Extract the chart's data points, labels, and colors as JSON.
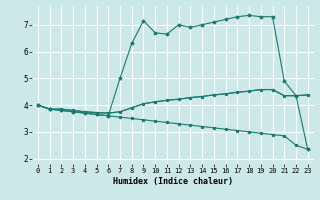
{
  "xlabel": "Humidex (Indice chaleur)",
  "bg_color": "#cce8e8",
  "line_color": "#1a7a6e",
  "grid_color": "#ffffff",
  "xlim": [
    -0.5,
    23.5
  ],
  "ylim": [
    1.8,
    7.7
  ],
  "yticks": [
    2,
    3,
    4,
    5,
    6,
    7
  ],
  "xticks": [
    0,
    1,
    2,
    3,
    4,
    5,
    6,
    7,
    8,
    9,
    10,
    11,
    12,
    13,
    14,
    15,
    16,
    17,
    18,
    19,
    20,
    21,
    22,
    23
  ],
  "line1_x": [
    0,
    1,
    2,
    3,
    4,
    5,
    6,
    7,
    8,
    9,
    10,
    11,
    12,
    13,
    14,
    15,
    16,
    17,
    18,
    19,
    20,
    21,
    22,
    23
  ],
  "line1_y": [
    4.0,
    3.85,
    3.85,
    3.8,
    3.75,
    3.72,
    3.7,
    3.75,
    3.9,
    4.05,
    4.12,
    4.18,
    4.22,
    4.28,
    4.32,
    4.38,
    4.42,
    4.48,
    4.52,
    4.58,
    4.58,
    4.35,
    4.35,
    4.38
  ],
  "line2_x": [
    0,
    1,
    2,
    3,
    4,
    5,
    6,
    7,
    8,
    9,
    10,
    11,
    12,
    13,
    14,
    15,
    16,
    17,
    18,
    19,
    20,
    21,
    22,
    23
  ],
  "line2_y": [
    4.0,
    3.85,
    3.85,
    3.8,
    3.75,
    3.72,
    3.7,
    3.75,
    3.9,
    4.05,
    4.12,
    4.18,
    4.22,
    4.28,
    4.32,
    4.38,
    4.42,
    4.48,
    4.52,
    4.58,
    4.58,
    4.35,
    4.35,
    4.38
  ],
  "line3_x": [
    0,
    1,
    2,
    3,
    4,
    5,
    6,
    7,
    8,
    9,
    10,
    11,
    12,
    13,
    14,
    15,
    16,
    17,
    18,
    19,
    20,
    21,
    22,
    23
  ],
  "line3_y": [
    4.0,
    3.85,
    3.8,
    3.75,
    3.7,
    3.65,
    3.6,
    5.0,
    6.3,
    7.15,
    6.7,
    6.65,
    7.0,
    6.9,
    7.0,
    7.1,
    7.2,
    7.3,
    7.35,
    7.3,
    7.3,
    4.9,
    4.35,
    2.35
  ],
  "line4_x": [
    0,
    1,
    2,
    3,
    4,
    5,
    6,
    7,
    8,
    9,
    10,
    11,
    12,
    13,
    14,
    15,
    16,
    17,
    18,
    19,
    20,
    21,
    22,
    23
  ],
  "line4_y": [
    4.0,
    3.85,
    3.8,
    3.75,
    3.7,
    3.65,
    3.6,
    3.55,
    3.5,
    3.45,
    3.4,
    3.35,
    3.3,
    3.25,
    3.2,
    3.15,
    3.1,
    3.05,
    3.0,
    2.95,
    2.9,
    2.85,
    2.5,
    2.35
  ],
  "tick_fontsize": 5.0,
  "label_fontsize": 6.0
}
